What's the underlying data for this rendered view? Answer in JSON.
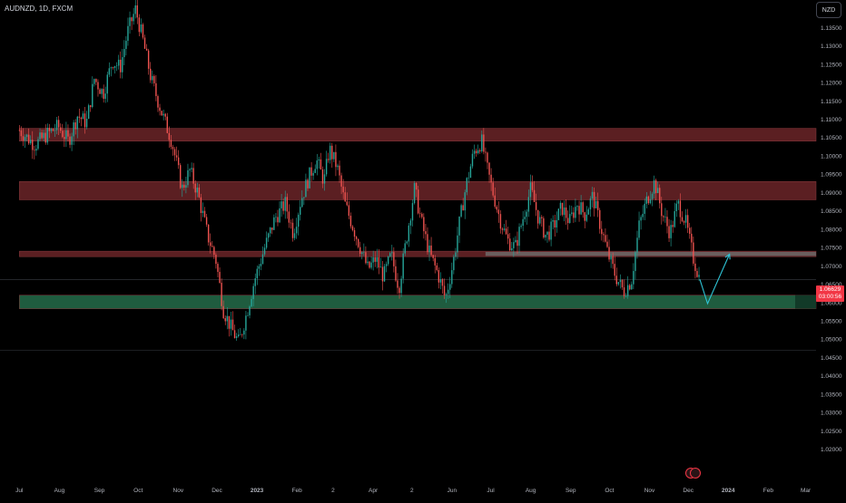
{
  "header": {
    "symbol_title": "AUDNZD, 1D, FXCM"
  },
  "price_scale": {
    "currency_label": "NZD"
  },
  "last_price": {
    "value": "1.06629",
    "countdown": "03:00:56"
  },
  "colors": {
    "background": "#000000",
    "up": "#26a69a",
    "down": "#ef5350",
    "resistance_zone": "#5b1f22",
    "support_zone": "#1f5c3f",
    "projection": "#2ec4d6",
    "mid_band": "#6e6e6e",
    "price_badge": "#f23645"
  },
  "chart_data": {
    "type": "candlestick",
    "title": "",
    "xlabel": "",
    "ylabel": "",
    "ylim": [
      1.0115,
      1.1425
    ],
    "y_ticks": [
      1.02,
      1.025,
      1.03,
      1.035,
      1.04,
      1.045,
      1.05,
      1.055,
      1.06,
      1.065,
      1.07,
      1.075,
      1.08,
      1.085,
      1.09,
      1.095,
      1.1,
      1.105,
      1.11,
      1.115,
      1.12,
      1.125,
      1.13,
      1.135
    ],
    "y_tick_labels": [
      "1.02000",
      "1.02500",
      "1.03000",
      "1.03500",
      "1.04000",
      "1.04500",
      "1.05000",
      "1.05500",
      "1.06000",
      "1.06500",
      "1.07000",
      "1.07500",
      "1.08000",
      "1.08500",
      "1.09000",
      "1.09500",
      "1.10000",
      "1.10500",
      "1.11000",
      "1.11500",
      "1.12000",
      "1.12500",
      "1.13000",
      "1.13500"
    ],
    "x_ticks": [
      {
        "label": "Jul",
        "day": 0
      },
      {
        "label": "Aug",
        "day": 31
      },
      {
        "label": "Sep",
        "day": 62
      },
      {
        "label": "Oct",
        "day": 92
      },
      {
        "label": "Nov",
        "day": 123
      },
      {
        "label": "Dec",
        "day": 153
      },
      {
        "label": "2023",
        "day": 184
      },
      {
        "label": "Feb",
        "day": 215
      },
      {
        "label": "2",
        "day": 243
      },
      {
        "label": "Apr",
        "day": 274
      },
      {
        "label": "2",
        "day": 304
      },
      {
        "label": "Jun",
        "day": 335
      },
      {
        "label": "Jul",
        "day": 365
      },
      {
        "label": "Aug",
        "day": 396
      },
      {
        "label": "Sep",
        "day": 427
      },
      {
        "label": "Oct",
        "day": 457
      },
      {
        "label": "Nov",
        "day": 488
      },
      {
        "label": "Dec",
        "day": 518
      },
      {
        "label": "2024",
        "day": 549
      },
      {
        "label": "Feb",
        "day": 580
      },
      {
        "label": "Mar",
        "day": 609
      }
    ],
    "close_path": [
      {
        "day": 0,
        "v": 1.107
      },
      {
        "day": 12,
        "v": 1.103
      },
      {
        "day": 22,
        "v": 1.106
      },
      {
        "day": 30,
        "v": 1.108
      },
      {
        "day": 38,
        "v": 1.104
      },
      {
        "day": 45,
        "v": 1.111
      },
      {
        "day": 52,
        "v": 1.109
      },
      {
        "day": 58,
        "v": 1.121
      },
      {
        "day": 65,
        "v": 1.117
      },
      {
        "day": 72,
        "v": 1.126
      },
      {
        "day": 78,
        "v": 1.124
      },
      {
        "day": 84,
        "v": 1.134
      },
      {
        "day": 90,
        "v": 1.14
      },
      {
        "day": 96,
        "v": 1.131
      },
      {
        "day": 102,
        "v": 1.121
      },
      {
        "day": 110,
        "v": 1.112
      },
      {
        "day": 118,
        "v": 1.104
      },
      {
        "day": 126,
        "v": 1.091
      },
      {
        "day": 132,
        "v": 1.096
      },
      {
        "day": 138,
        "v": 1.09
      },
      {
        "day": 146,
        "v": 1.078
      },
      {
        "day": 152,
        "v": 1.072
      },
      {
        "day": 158,
        "v": 1.058
      },
      {
        "day": 164,
        "v": 1.053
      },
      {
        "day": 170,
        "v": 1.049
      },
      {
        "day": 176,
        "v": 1.057
      },
      {
        "day": 182,
        "v": 1.066
      },
      {
        "day": 190,
        "v": 1.075
      },
      {
        "day": 198,
        "v": 1.083
      },
      {
        "day": 206,
        "v": 1.087
      },
      {
        "day": 212,
        "v": 1.079
      },
      {
        "day": 218,
        "v": 1.088
      },
      {
        "day": 224,
        "v": 1.094
      },
      {
        "day": 230,
        "v": 1.099
      },
      {
        "day": 236,
        "v": 1.093
      },
      {
        "day": 240,
        "v": 1.102
      },
      {
        "day": 246,
        "v": 1.097
      },
      {
        "day": 252,
        "v": 1.087
      },
      {
        "day": 258,
        "v": 1.081
      },
      {
        "day": 264,
        "v": 1.075
      },
      {
        "day": 270,
        "v": 1.069
      },
      {
        "day": 276,
        "v": 1.072
      },
      {
        "day": 282,
        "v": 1.067
      },
      {
        "day": 288,
        "v": 1.073
      },
      {
        "day": 294,
        "v": 1.064
      },
      {
        "day": 300,
        "v": 1.078
      },
      {
        "day": 306,
        "v": 1.091
      },
      {
        "day": 312,
        "v": 1.081
      },
      {
        "day": 318,
        "v": 1.073
      },
      {
        "day": 324,
        "v": 1.068
      },
      {
        "day": 330,
        "v": 1.061
      },
      {
        "day": 336,
        "v": 1.071
      },
      {
        "day": 340,
        "v": 1.08
      },
      {
        "day": 346,
        "v": 1.092
      },
      {
        "day": 352,
        "v": 1.101
      },
      {
        "day": 358,
        "v": 1.104
      },
      {
        "day": 362,
        "v": 1.097
      },
      {
        "day": 366,
        "v": 1.091
      },
      {
        "day": 372,
        "v": 1.083
      },
      {
        "day": 378,
        "v": 1.077
      },
      {
        "day": 384,
        "v": 1.075
      },
      {
        "day": 390,
        "v": 1.083
      },
      {
        "day": 396,
        "v": 1.091
      },
      {
        "day": 402,
        "v": 1.083
      },
      {
        "day": 408,
        "v": 1.078
      },
      {
        "day": 414,
        "v": 1.081
      },
      {
        "day": 420,
        "v": 1.086
      },
      {
        "day": 426,
        "v": 1.082
      },
      {
        "day": 432,
        "v": 1.087
      },
      {
        "day": 438,
        "v": 1.084
      },
      {
        "day": 444,
        "v": 1.089
      },
      {
        "day": 450,
        "v": 1.081
      },
      {
        "day": 456,
        "v": 1.073
      },
      {
        "day": 462,
        "v": 1.067
      },
      {
        "day": 468,
        "v": 1.063
      },
      {
        "day": 474,
        "v": 1.066
      },
      {
        "day": 480,
        "v": 1.081
      },
      {
        "day": 486,
        "v": 1.088
      },
      {
        "day": 492,
        "v": 1.093
      },
      {
        "day": 498,
        "v": 1.084
      },
      {
        "day": 504,
        "v": 1.079
      },
      {
        "day": 510,
        "v": 1.087
      },
      {
        "day": 516,
        "v": 1.082
      },
      {
        "day": 522,
        "v": 1.072
      },
      {
        "day": 527,
        "v": 1.0663
      }
    ],
    "zones": [
      {
        "name": "resistance-zone-upper",
        "from": 1.104,
        "to": 1.1075,
        "color": "#5b1f22",
        "start_day": 0
      },
      {
        "name": "resistance-zone-middle",
        "from": 1.088,
        "to": 1.093,
        "color": "#5b1f22",
        "start_day": 0
      },
      {
        "name": "resistance-line-lower",
        "from": 1.0725,
        "to": 1.074,
        "color": "#5b1f22",
        "start_day": 0
      },
      {
        "name": "support-zone",
        "from": 1.0583,
        "to": 1.062,
        "color": "#1f5c3f",
        "start_day": 0
      }
    ],
    "mid_band": {
      "from": 1.0727,
      "to": 1.0738,
      "start_day": 361
    },
    "reference_lines": [
      {
        "name": "last-price-line",
        "value": 1.0663
      },
      {
        "name": "low-reference-line",
        "value": 1.047
      }
    ],
    "projection": [
      {
        "day": 527,
        "v": 1.0663
      },
      {
        "day": 533,
        "v": 1.0597
      },
      {
        "day": 550,
        "v": 1.0732
      }
    ]
  }
}
